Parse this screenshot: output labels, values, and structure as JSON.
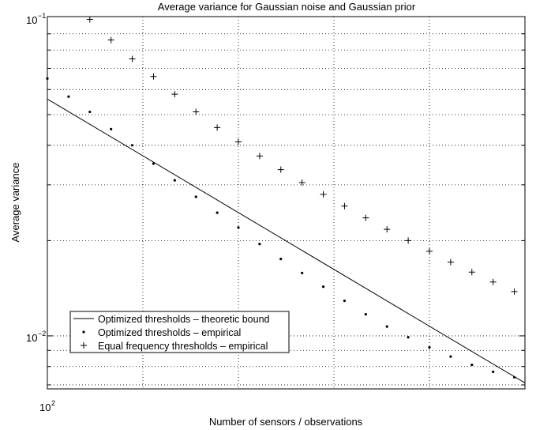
{
  "chart_data": {
    "type": "scatter",
    "title": "Average variance for Gaussian noise and Gaussian prior",
    "xlabel": "Number of sensors / observations",
    "ylabel": "Average variance",
    "xscale": "linear",
    "yscale": "log",
    "grid": true,
    "legend_position": "lower-left",
    "x_tick_labels": [
      {
        "base": "10",
        "exp": "2"
      }
    ],
    "y_tick_labels": [
      {
        "base": "10",
        "exp": "−1",
        "value": 0.1
      },
      {
        "base": "10",
        "exp": "−2",
        "value": 0.01
      }
    ],
    "xlim": [
      100,
      145
    ],
    "ylim": [
      0.0068,
      0.102
    ],
    "series": [
      {
        "name": "Optimized thresholds – theoretic bound",
        "marker": "line",
        "color": "#000000",
        "x": [
          100,
          145
        ],
        "y": [
          0.056,
          0.0071
        ]
      },
      {
        "name": "Optimized thresholds – empirical",
        "marker": "dot",
        "color": "#000000",
        "x": [
          100,
          102,
          104,
          106,
          108,
          110,
          112,
          114,
          116,
          118,
          120,
          122,
          124,
          126,
          128,
          130,
          132,
          134,
          136,
          138,
          140,
          142,
          144
        ],
        "y": [
          0.065,
          0.057,
          0.051,
          0.045,
          0.04,
          0.035,
          0.031,
          0.0275,
          0.0245,
          0.022,
          0.0195,
          0.0175,
          0.0158,
          0.0143,
          0.0129,
          0.0117,
          0.0107,
          0.0099,
          0.0092,
          0.0086,
          0.0081,
          0.0077,
          0.0074
        ]
      },
      {
        "name": "Equal frequency thresholds – empirical",
        "marker": "plus",
        "color": "#000000",
        "x": [
          104,
          106,
          108,
          110,
          112,
          114,
          116,
          118,
          120,
          122,
          124,
          126,
          128,
          130,
          132,
          134,
          136,
          138,
          140,
          142,
          144
        ],
        "y": [
          0.1,
          0.086,
          0.075,
          0.066,
          0.058,
          0.051,
          0.0455,
          0.041,
          0.037,
          0.0335,
          0.0305,
          0.028,
          0.0257,
          0.0236,
          0.0217,
          0.02,
          0.0185,
          0.0171,
          0.0159,
          0.0148,
          0.0138
        ]
      }
    ]
  }
}
